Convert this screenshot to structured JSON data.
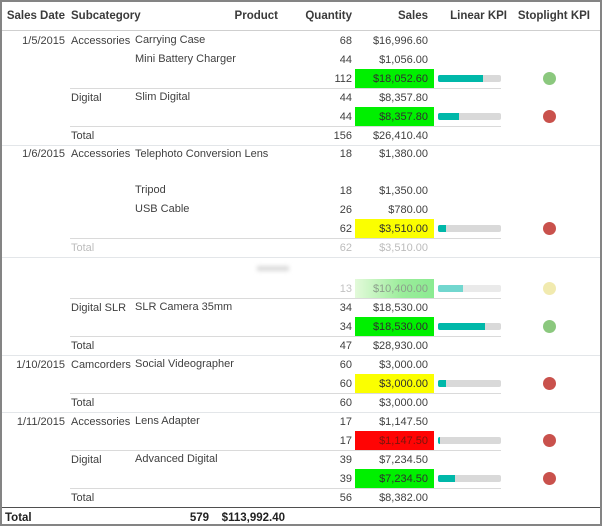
{
  "header": {
    "columns": [
      "Sales Date",
      "Subcategory",
      "Product",
      "Quantity",
      "Sales",
      "Linear KPI",
      "Stoplight KPI"
    ]
  },
  "colors": {
    "sales_green_bg": "#00f000",
    "sales_yellow_bg": "#fbff00",
    "sales_red_bg": "#ff0404",
    "kpi_bar_fill": "#00b8a9",
    "kpi_bar_track": "#d9d9d9",
    "stoplight_green": "#8bc87e",
    "stoplight_red": "#c9514c",
    "stoplight_yellow": "#e6d96e"
  },
  "table": {
    "rows": [
      {
        "type": "detail",
        "date": "1/5/2015",
        "subcategory": "Accessories",
        "product": "Carrying Case",
        "quantity": "68",
        "sales": "$16,996.60"
      },
      {
        "type": "detail",
        "product": "Mini Battery Charger",
        "quantity": "44",
        "sales": "$1,056.00"
      },
      {
        "type": "subtotal",
        "quantity": "112",
        "sales": "$18,052.60",
        "sales_bg": "green",
        "kpi": 0.71,
        "stoplight": "green"
      },
      {
        "type": "detail",
        "subcategory": "Digital",
        "product": "Slim Digital",
        "quantity": "44",
        "sales": "$8,357.80",
        "line": "inner"
      },
      {
        "type": "subtotal",
        "quantity": "44",
        "sales": "$8,357.80",
        "sales_bg": "green",
        "kpi": 0.34,
        "stoplight": "red"
      },
      {
        "type": "total",
        "label": "Total",
        "quantity": "156",
        "sales": "$26,410.40",
        "line": "inner"
      },
      {
        "type": "detail",
        "date": "1/6/2015",
        "subcategory": "Accessories",
        "product": "Telephoto Conversion Lens",
        "quantity": "18",
        "sales": "$1,380.00",
        "line": "group",
        "tall": true
      },
      {
        "type": "detail",
        "product": "Tripod",
        "quantity": "18",
        "sales": "$1,350.00"
      },
      {
        "type": "detail",
        "product": "USB Cable",
        "quantity": "26",
        "sales": "$780.00"
      },
      {
        "type": "subtotal",
        "quantity": "62",
        "sales": "$3,510.00",
        "sales_bg": "yellow",
        "kpi": 0.13,
        "stoplight": "red"
      },
      {
        "type": "total",
        "label": "Total",
        "quantity": "62",
        "sales": "$3,510.00",
        "line": "inner",
        "fade": "text"
      },
      {
        "type": "blank",
        "line": "group",
        "smudge": true
      },
      {
        "type": "subtotal",
        "quantity": "13",
        "sales": "$10,400.00",
        "sales_bg": "green_fade",
        "kpi": 0.4,
        "stoplight": "yellow",
        "fade": "soft"
      },
      {
        "type": "detail",
        "subcategory": "Digital SLR",
        "product": "SLR Camera 35mm",
        "quantity": "34",
        "sales": "$18,530.00",
        "line": "inner"
      },
      {
        "type": "subtotal",
        "quantity": "34",
        "sales": "$18,530.00",
        "sales_bg": "green",
        "kpi": 0.74,
        "stoplight": "green"
      },
      {
        "type": "total",
        "label": "Total",
        "quantity": "47",
        "sales": "$28,930.00",
        "line": "inner"
      },
      {
        "type": "detail",
        "date": "1/10/2015",
        "subcategory": "Camcorders",
        "product": "Social Videographer",
        "quantity": "60",
        "sales": "$3,000.00",
        "line": "group"
      },
      {
        "type": "subtotal",
        "quantity": "60",
        "sales": "$3,000.00",
        "sales_bg": "yellow",
        "kpi": 0.13,
        "stoplight": "red"
      },
      {
        "type": "total",
        "label": "Total",
        "quantity": "60",
        "sales": "$3,000.00",
        "line": "inner"
      },
      {
        "type": "detail",
        "date": "1/11/2015",
        "subcategory": "Accessories",
        "product": "Lens Adapter",
        "quantity": "17",
        "sales": "$1,147.50",
        "line": "group"
      },
      {
        "type": "subtotal",
        "quantity": "17",
        "sales": "$1,147.50",
        "sales_bg": "red",
        "kpi": 0.03,
        "stoplight": "red"
      },
      {
        "type": "detail",
        "subcategory": "Digital",
        "product": "Advanced Digital",
        "quantity": "39",
        "sales": "$7,234.50",
        "line": "inner"
      },
      {
        "type": "subtotal",
        "quantity": "39",
        "sales": "$7,234.50",
        "sales_bg": "green",
        "kpi": 0.27,
        "stoplight": "red"
      },
      {
        "type": "total",
        "label": "Total",
        "quantity": "56",
        "sales": "$8,382.00",
        "line": "inner"
      }
    ],
    "grand_total": {
      "label": "Total",
      "quantity": "579",
      "sales": "$113,992.40"
    }
  }
}
